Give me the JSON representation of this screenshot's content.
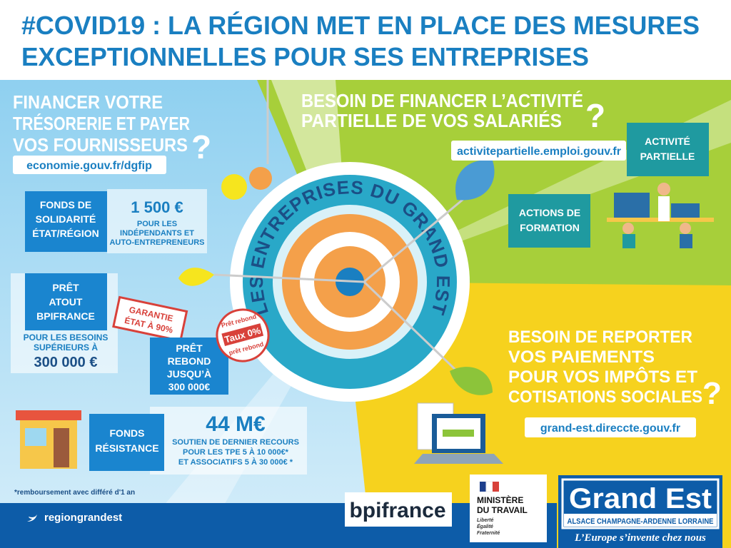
{
  "header": {
    "title": [
      "#COVID19 : LA RÉGION MET EN PLACE DES MESURES",
      "EXCEPTIONNELLES POUR SES ENTREPRISES"
    ]
  },
  "left": {
    "heading": [
      "FINANCER VOTRE",
      "TRÉSORERIE ET PAYER",
      "VOS FOURNISSEURS",
      "?"
    ],
    "url": "economie.gouv.fr/dgfip",
    "solidarite": {
      "label": [
        "FONDS DE",
        "SOLIDARITÉ",
        "ÉTAT/RÉGION"
      ],
      "amount": "1 500 €",
      "desc": [
        "POUR LES",
        "INDÉPENDANTS ET",
        "AUTO-ENTREPRENEURS"
      ]
    },
    "atout": {
      "label": [
        "PRÊT",
        "ATOUT",
        "BPIFRANCE"
      ],
      "stamp": [
        "GARANTIE",
        "ÉTAT À 90%"
      ],
      "desc": [
        "POUR LES BESOINS",
        "SUPÉRIEURS À"
      ],
      "amount": "300 000 €"
    },
    "rebond": {
      "label": [
        "PRÊT",
        "REBOND",
        "JUSQU’À",
        "300 000€"
      ],
      "stamp": [
        "Prêt rebond",
        "Taux 0%",
        "prêt rebond"
      ]
    },
    "resistance": {
      "label": [
        "FONDS",
        "RÉSISTANCE"
      ],
      "amount": "44 M€",
      "desc": [
        "SOUTIEN DE DERNIER RECOURS",
        "POUR LES TPE  5 À 10 000€*",
        "ET ASSOCIATIFS 5 À 30 000€ *"
      ]
    },
    "footnote": "*remboursement avec différé d'1 an",
    "twitter": "regiongrandest"
  },
  "center": {
    "label": "LES ENTREPRISES DU GRAND EST"
  },
  "top_right": {
    "heading": [
      "BESOIN DE FINANCER L’ACTIVITÉ",
      "PARTIELLE DE VOS SALARIÉS",
      "?"
    ],
    "url": "activitepartielle.emploi.gouv.fr",
    "boxes": [
      [
        "ACTIVITÉ",
        "PARTIELLE"
      ],
      [
        "ACTIONS DE",
        "FORMATION"
      ]
    ]
  },
  "bottom_right": {
    "heading": [
      "BESOIN DE REPORTER",
      "VOS PAIEMENTS",
      "POUR VOS IMPÔTS ET",
      "COTISATIONS SOCIALES",
      "?"
    ],
    "url": "grand-est.direccte.gouv.fr"
  },
  "logos": {
    "bpi": "bpifrance",
    "ministry": [
      "MINISTÈRE",
      "DU TRAVAIL",
      "Liberté",
      "Égalité",
      "Fraternité"
    ],
    "region": {
      "name": "Grand Est",
      "sub": "ALSACE CHAMPAGNE-ARDENNE LORRAINE",
      "slogan": "L’Europe s’invente chez nous"
    }
  }
}
